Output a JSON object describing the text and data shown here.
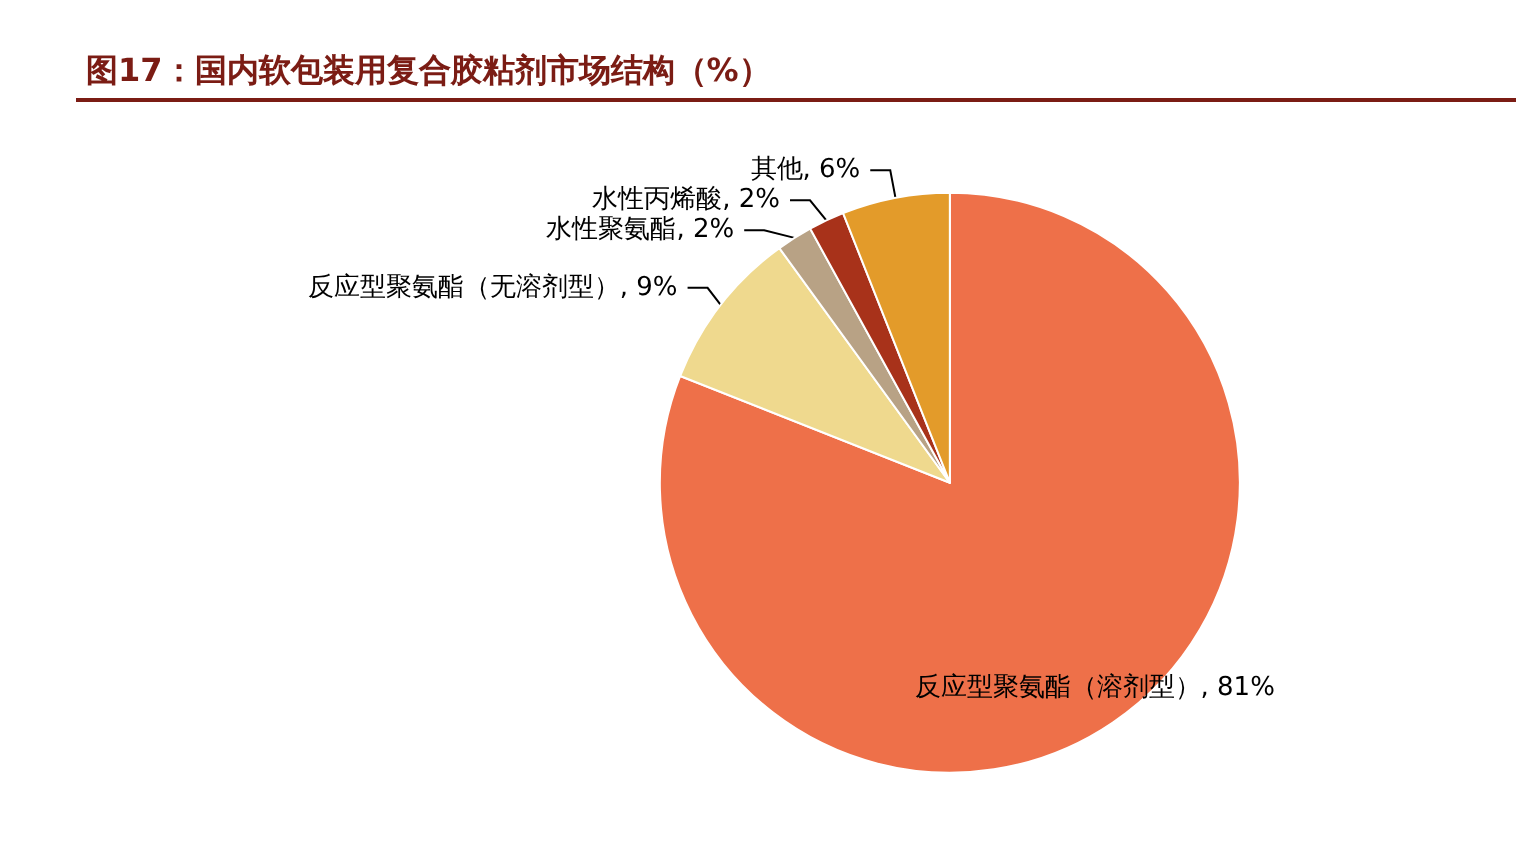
{
  "chart_data": {
    "type": "pie",
    "title": "图17：国内软包装用复合胶粘剂市场结构（%）",
    "categories": [
      "反应型聚氨酯（溶剂型）",
      "反应型聚氨酯（无溶剂型）",
      "水性聚氨酯",
      "水性丙烯酸",
      "其他"
    ],
    "values": [
      81,
      9,
      2,
      2,
      6
    ],
    "colors": [
      "#ee7049",
      "#efd98e",
      "#b8a285",
      "#a8321a",
      "#e39b2a"
    ],
    "value_labels": [
      ", 81%",
      ", 9%",
      ", 2%",
      ", 2%",
      ", 6%"
    ]
  }
}
